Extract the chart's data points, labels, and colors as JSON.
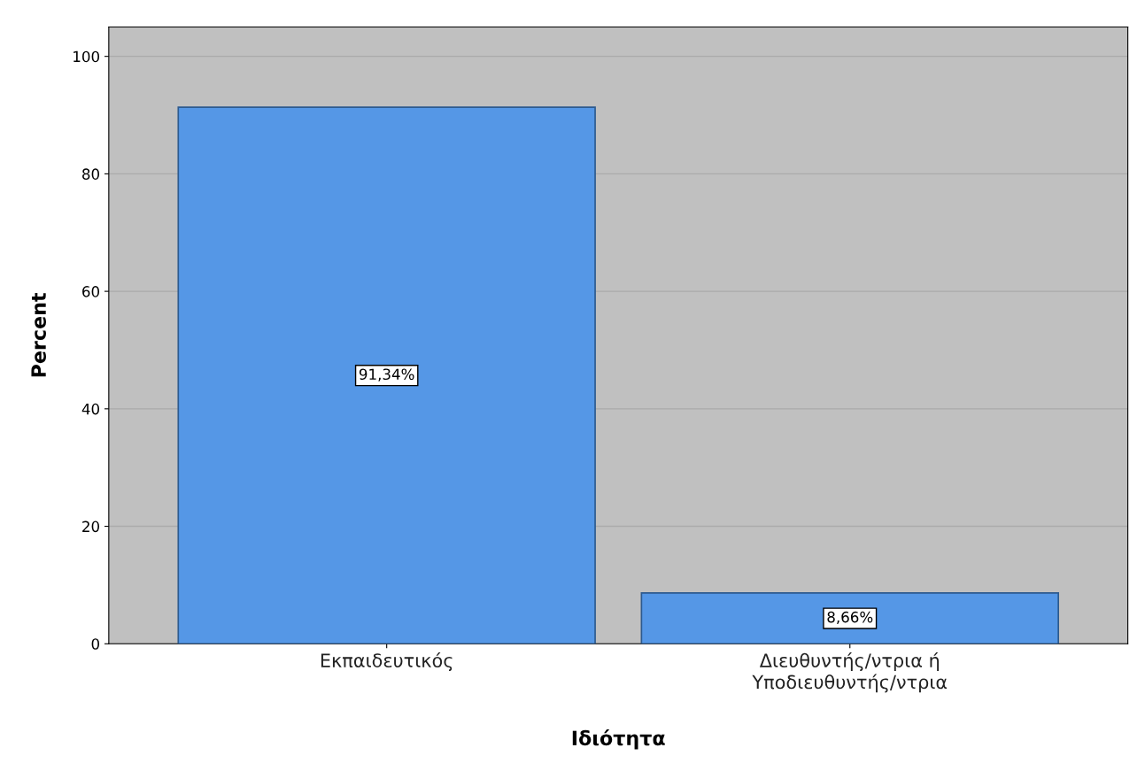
{
  "chart_data": {
    "type": "bar",
    "xlabel": "Ιδιότητα",
    "ylabel": "Percent",
    "categories": [
      "Εκπαιδευτικός",
      "Διευθυντής/ντρια ή\nΥποδιευθυντής/ντρια"
    ],
    "values": [
      91.34,
      8.66
    ],
    "color": "#5597e6",
    "value_labels": [
      "91,34%",
      "8,66%"
    ],
    "ylim": [
      0,
      105
    ],
    "yticks": [
      0,
      20,
      40,
      60,
      80,
      100
    ],
    "grid": "y",
    "legend": false
  }
}
